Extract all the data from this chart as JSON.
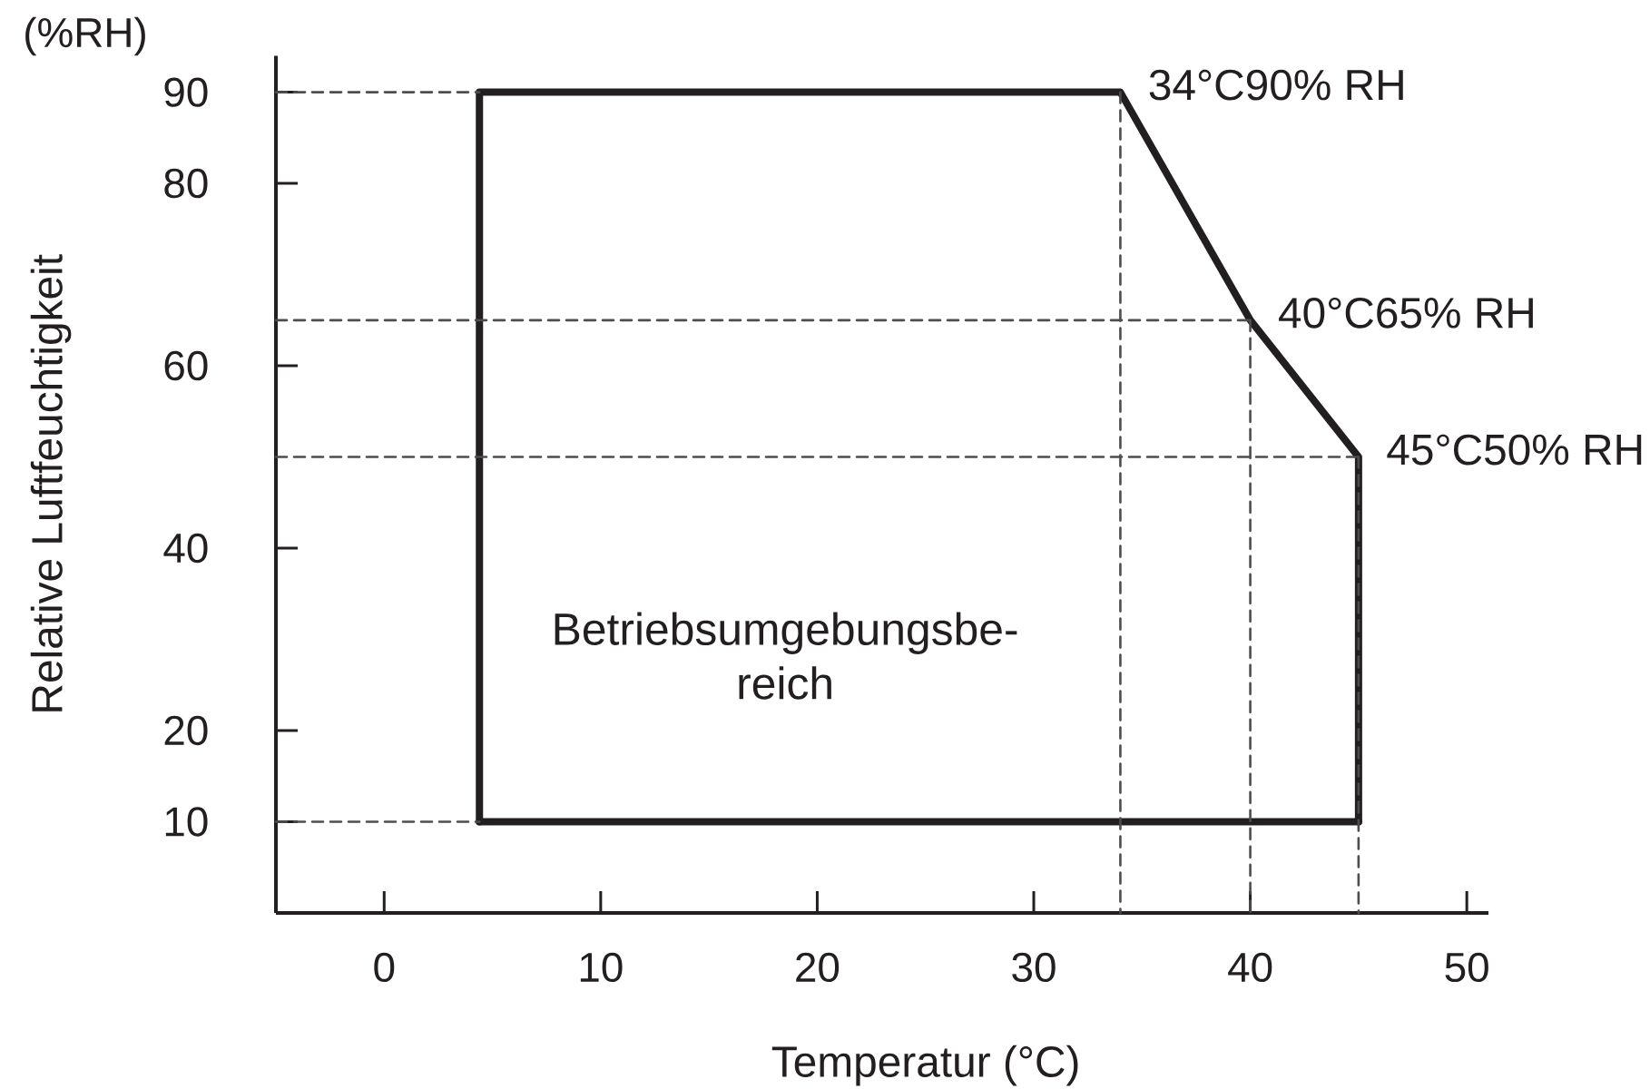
{
  "chart_data": {
    "type": "line",
    "xlabel": "Temperatur (°C)",
    "ylabel": "Relative Luftfeuchtigkeit",
    "annotations": [
      "(%RH)",
      "Betriebsumgebungsbe-reich"
    ],
    "xlim": [
      -5,
      51
    ],
    "ylim": [
      0,
      94
    ],
    "xticks": [
      0,
      10,
      20,
      30,
      40,
      50
    ],
    "yticks": [
      10,
      20,
      40,
      60,
      80,
      90
    ],
    "series": [
      {
        "x": [
          4.4,
          4.4,
          34,
          40,
          45,
          45
        ],
        "values": [
          10,
          90,
          90,
          65,
          50,
          10
        ],
        "color": "#231f20",
        "line_style": "solid",
        "value_labels": [
          null,
          null,
          "34°C90% RH",
          "40°C65% RH",
          "45°C50% RH",
          null
        ]
      },
      {
        "x": [
          4.4,
          45
        ],
        "values": [
          10,
          10
        ],
        "color": "#231f20",
        "line_style": "solid"
      },
      {
        "x": [
          -5,
          4.4
        ],
        "values": [
          90,
          90
        ],
        "color": "#4d4d4d",
        "line_style": "dashed"
      },
      {
        "x": [
          -5,
          40
        ],
        "values": [
          65,
          65
        ],
        "color": "#4d4d4d",
        "line_style": "dashed"
      },
      {
        "x": [
          -5,
          45
        ],
        "values": [
          50,
          50
        ],
        "color": "#4d4d4d",
        "line_style": "dashed"
      },
      {
        "x": [
          -5,
          4.4
        ],
        "values": [
          10,
          10
        ],
        "color": "#4d4d4d",
        "line_style": "dashed"
      },
      {
        "x": [
          34,
          34
        ],
        "values": [
          90,
          0
        ],
        "color": "#4d4d4d",
        "line_style": "dashed"
      },
      {
        "x": [
          40,
          40
        ],
        "values": [
          65,
          0
        ],
        "color": "#4d4d4d",
        "line_style": "dashed"
      },
      {
        "x": [
          45,
          45
        ],
        "values": [
          50,
          0
        ],
        "color": "#4d4d4d",
        "line_style": "dashed"
      }
    ]
  }
}
